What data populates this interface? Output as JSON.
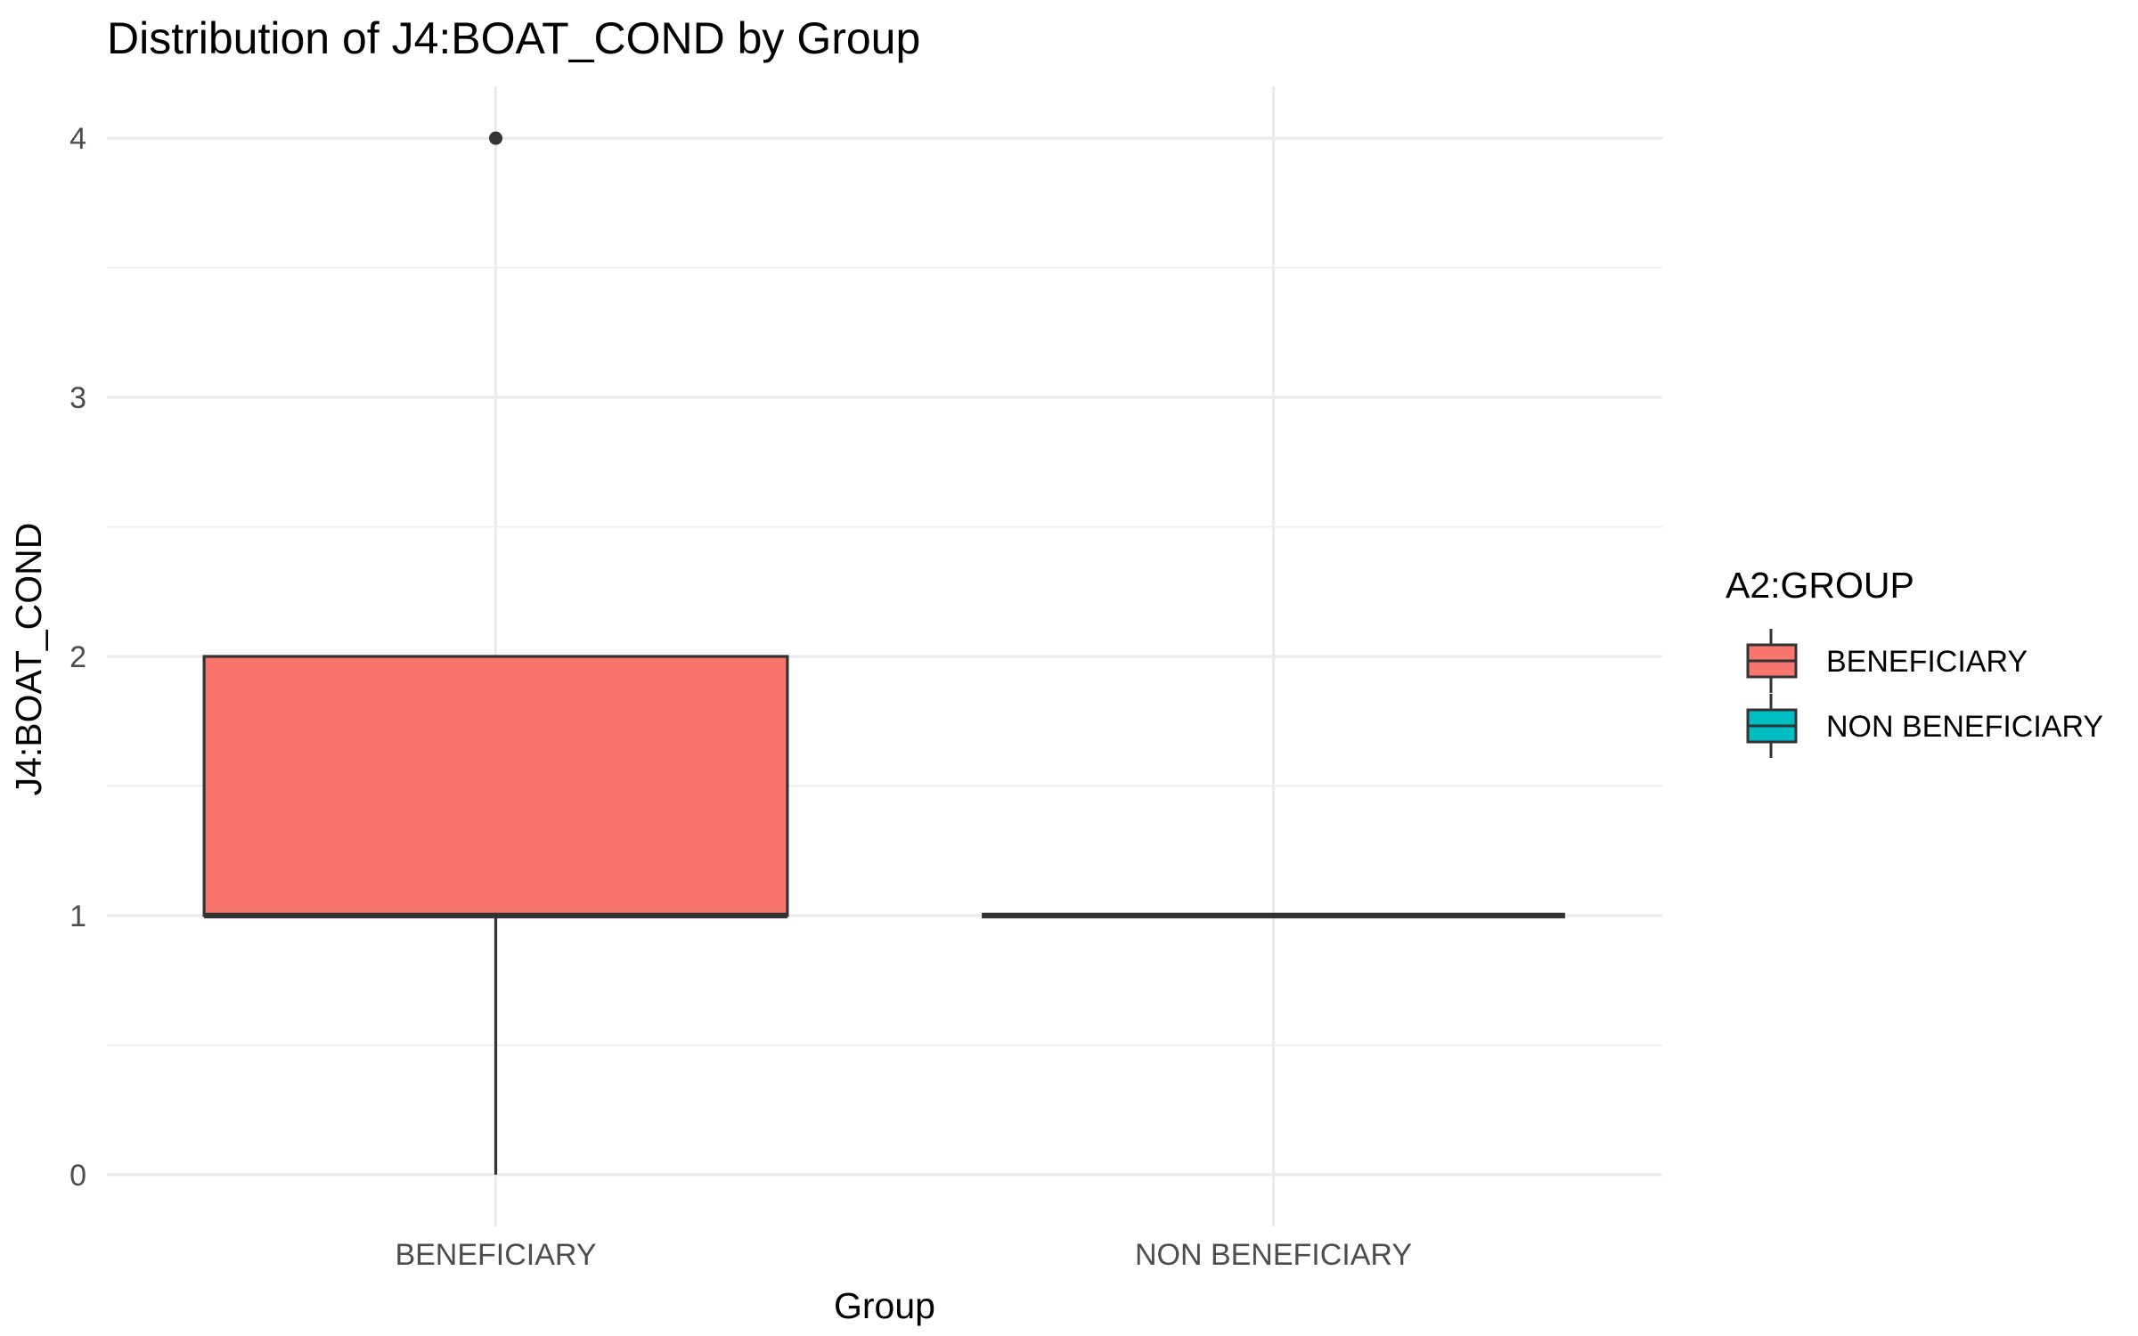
{
  "chart_data": {
    "type": "boxplot",
    "title": "Distribution of J4:BOAT_COND by Group",
    "xlabel": "Group",
    "ylabel": "J4:BOAT_COND",
    "categories": [
      "BENEFICIARY",
      "NON BENEFICIARY"
    ],
    "ylim": [
      -0.2,
      4.2
    ],
    "yticks": [
      0,
      1,
      2,
      3,
      4
    ],
    "grid": true,
    "legend": {
      "title": "A2:GROUP",
      "position": "right",
      "entries": [
        {
          "label": "BENEFICIARY",
          "color": "#F8766D"
        },
        {
          "label": "NON BENEFICIARY",
          "color": "#00BFC4"
        }
      ]
    },
    "boxes": [
      {
        "group": "BENEFICIARY",
        "color": "#F8766D",
        "min": 0,
        "q1": 1,
        "median": 1,
        "q3": 2,
        "max": 2,
        "outliers": [
          4
        ]
      },
      {
        "group": "NON BENEFICIARY",
        "color": "#00BFC4",
        "min": 1,
        "q1": 1,
        "median": 1,
        "q3": 1,
        "max": 1,
        "outliers": []
      }
    ]
  }
}
